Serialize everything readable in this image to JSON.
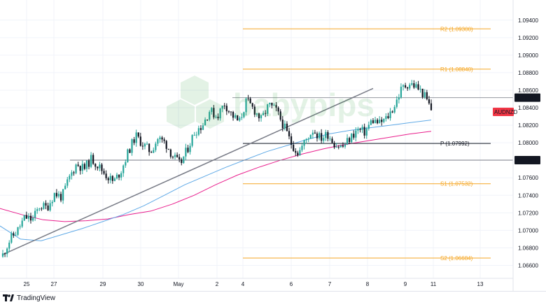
{
  "footer": {
    "brand": "TradingView"
  },
  "watermark": {
    "text": "babypips"
  },
  "chart_data": {
    "type": "candlestick",
    "symbol": "AUDNZD",
    "current_price": "1.08515",
    "colors": {
      "up": "#26a69a",
      "down": "#131722",
      "ma_fast": "#5fa9e6",
      "ma_slow": "#e91e8c",
      "trendline": "#787b86",
      "pivot_levels": "#f5a623",
      "pivot_line": "#131722",
      "price_label_bg": "#131722",
      "symbol_label_bg": "#f23645"
    },
    "x_ticks": [
      "25",
      "27",
      "29",
      "30",
      "May",
      "2",
      "4",
      "6",
      "7",
      "8",
      "9",
      "11",
      "13"
    ],
    "y_ticks": [
      "1.09400",
      "1.09200",
      "1.09000",
      "1.08800",
      "1.08600",
      "1.08400",
      "1.08200",
      "1.08000",
      "1.07800",
      "1.07600",
      "1.07400",
      "1.07200",
      "1.07000",
      "1.06800",
      "1.06600"
    ],
    "y_range": [
      1.065,
      1.0955
    ],
    "levels": [
      {
        "label": "R2 (1.09300)",
        "value": 1.093,
        "style": "pivot"
      },
      {
        "label": "R1 (1.08840)",
        "value": 1.0884,
        "style": "pivot"
      },
      {
        "label": "P (1.07992)",
        "value": 1.07992,
        "style": "central"
      },
      {
        "label": "S1 (1.07532)",
        "value": 1.07532,
        "style": "pivot"
      },
      {
        "label": "S2 (1.06684)",
        "value": 1.06684,
        "style": "pivot"
      }
    ],
    "horizontal_lines": [
      {
        "label": "1.08515",
        "value": 1.08515
      },
      {
        "label": "1.07801",
        "value": 1.07801
      }
    ],
    "trendline": {
      "start": 1.0672,
      "end": 1.0862
    },
    "price_path": [
      1.0672,
      1.069,
      1.07,
      1.0715,
      1.0712,
      1.0728,
      1.0726,
      1.0742,
      1.0738,
      1.076,
      1.0776,
      1.077,
      1.0782,
      1.0773,
      1.0763,
      1.0755,
      1.0768,
      1.079,
      1.0808,
      1.0798,
      1.079,
      1.0805,
      1.08,
      1.0785,
      1.0775,
      1.0793,
      1.0813,
      1.082,
      1.0837,
      1.083,
      1.0845,
      1.0832,
      1.0823,
      1.0848,
      1.0838,
      1.0826,
      1.0843,
      1.0837,
      1.082,
      1.08,
      1.0788,
      1.0803,
      1.0815,
      1.0805,
      1.081,
      1.0798,
      1.0795,
      1.0805,
      1.0815,
      1.0812,
      1.0826,
      1.0822,
      1.0828,
      1.0842,
      1.0862,
      1.0868,
      1.0864,
      1.0855,
      1.0838
    ],
    "ma_fast": [
      1.0705,
      1.069,
      1.0688,
      1.0695,
      1.0702,
      1.071,
      1.0718,
      1.0728,
      1.074,
      1.0752,
      1.0762,
      1.0772,
      1.0781,
      1.079,
      1.0797,
      1.0804,
      1.081,
      1.0814,
      1.0817,
      1.082,
      1.0823,
      1.0826
    ],
    "ma_slow": [
      1.0725,
      1.0718,
      1.0712,
      1.071,
      1.0711,
      1.0713,
      1.0718,
      1.0722,
      1.073,
      1.074,
      1.0752,
      1.0763,
      1.0772,
      1.078,
      1.0787,
      1.0793,
      1.0798,
      1.0802,
      1.0806,
      1.081,
      1.0813
    ]
  }
}
